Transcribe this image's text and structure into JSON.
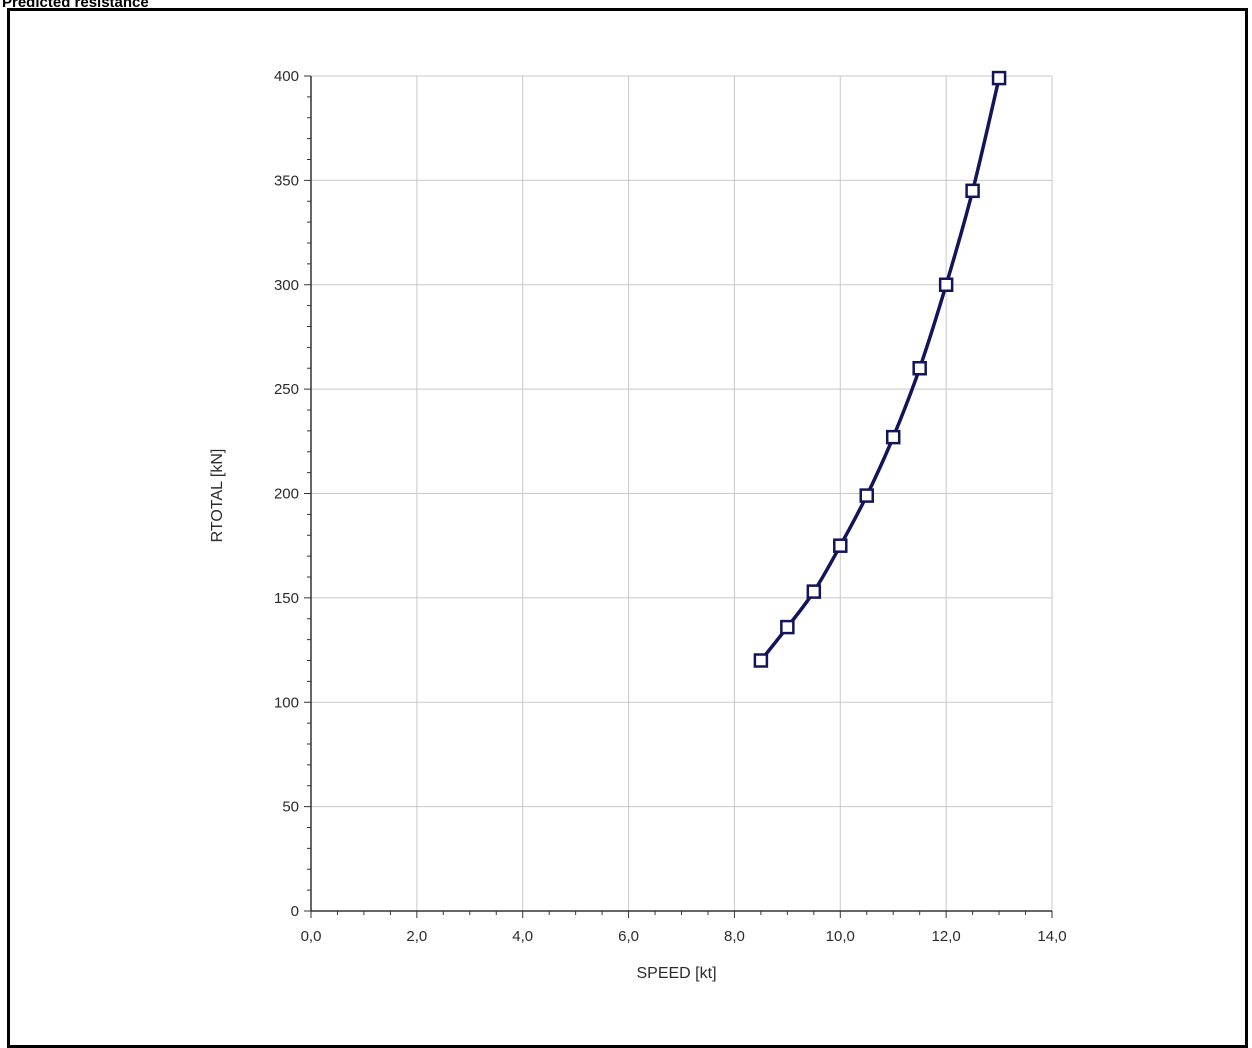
{
  "panel": {
    "title": "Predicted resistance"
  },
  "chart_data": {
    "type": "line",
    "title": "",
    "xlabel": "SPEED [kt]",
    "ylabel": "RTOTAL [kN]",
    "xlim": [
      0,
      14
    ],
    "ylim": [
      0,
      400
    ],
    "x_ticks": [
      "0,0",
      "2,0",
      "4,0",
      "6,0",
      "8,0",
      "10,0",
      "12,0",
      "14,0"
    ],
    "y_ticks": [
      "0",
      "50",
      "100",
      "150",
      "200",
      "250",
      "300",
      "350",
      "400"
    ],
    "grid": true,
    "legend": "none",
    "series": [
      {
        "x": [
          8.5,
          9.0,
          9.5,
          10.0,
          10.5,
          11.0,
          11.5,
          12.0,
          12.5,
          13.0
        ],
        "y": [
          120,
          136,
          153,
          175,
          199,
          227,
          260,
          300,
          345,
          399
        ],
        "color": "#14145a",
        "marker": "square"
      }
    ]
  }
}
